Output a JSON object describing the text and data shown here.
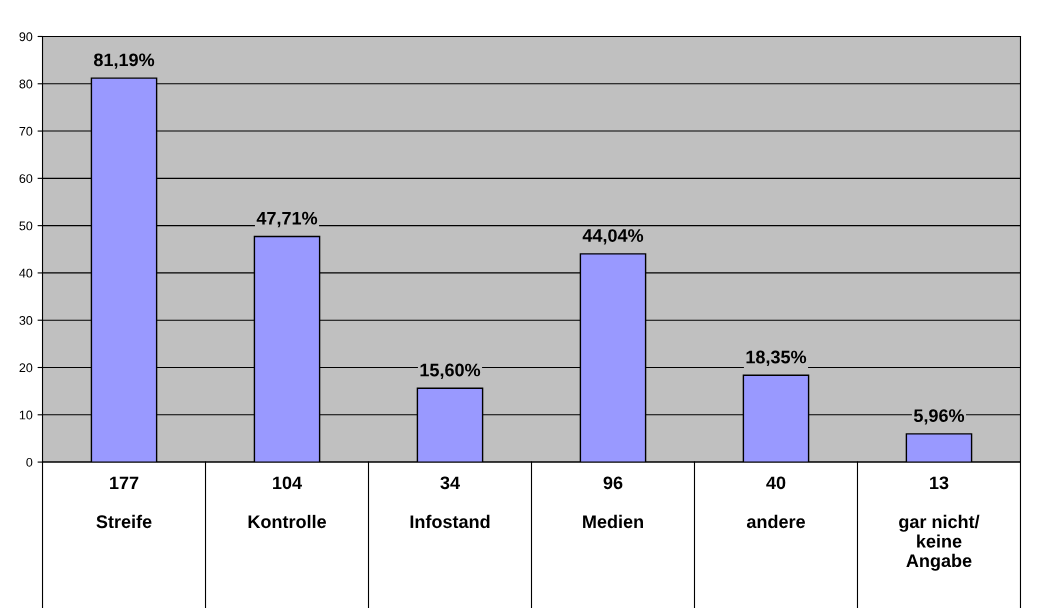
{
  "chart_data": {
    "type": "bar",
    "categories": [
      "177\n\nStreife",
      "104\n\nKontrolle",
      "34\n\nInfostand",
      "96\n\nMedien",
      "40\n\nandere",
      "13\n\ngar nicht/\nkeine\nAngabe"
    ],
    "values": [
      81.19,
      47.71,
      15.6,
      44.04,
      18.35,
      5.96
    ],
    "value_labels": [
      "81,19%",
      "47,71%",
      "15,60%",
      "44,04%",
      "18,35%",
      "5,96%"
    ],
    "color": "#9999ff",
    "ylim": [
      0,
      90
    ],
    "yticks": [
      0,
      10,
      20,
      30,
      40,
      50,
      60,
      70,
      80,
      90
    ],
    "grid": "y",
    "legend": false
  }
}
